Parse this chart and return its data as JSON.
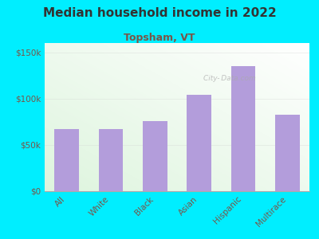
{
  "title": "Median household income in 2022",
  "subtitle": "Topsham, VT",
  "categories": [
    "All",
    "White",
    "Black",
    "Asian",
    "Hispanic",
    "Multirace"
  ],
  "values": [
    67000,
    67000,
    76000,
    104000,
    135000,
    83000
  ],
  "bar_color": "#b39ddb",
  "background_outer": "#00eeff",
  "yticks": [
    0,
    50000,
    100000,
    150000
  ],
  "ytick_labels": [
    "$0",
    "$50k",
    "$100k",
    "$150k"
  ],
  "ylim": [
    0,
    160000
  ],
  "title_fontsize": 11,
  "subtitle_fontsize": 9,
  "tick_label_fontsize": 7.5,
  "axis_label_color": "#795548",
  "title_color": "#333333",
  "subtitle_color": "#795548"
}
